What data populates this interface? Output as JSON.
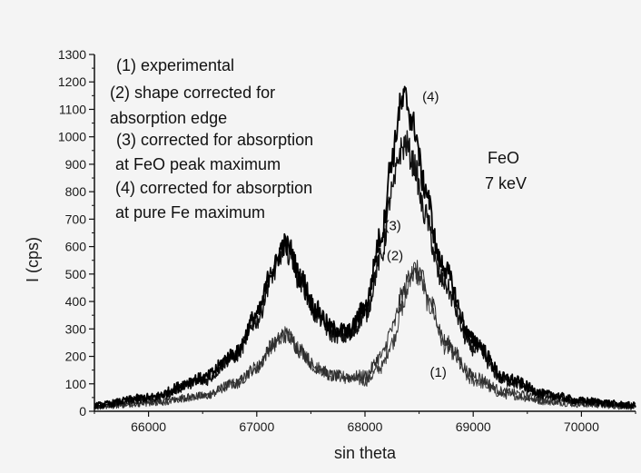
{
  "chart_data": {
    "type": "line",
    "title": "",
    "xlabel": "sin theta",
    "ylabel": "I (cps)",
    "xlim": [
      65500,
      70500
    ],
    "ylim": [
      0,
      1300
    ],
    "xticks": [
      66000,
      67000,
      68000,
      69000,
      70000
    ],
    "yticks": [
      0,
      100,
      200,
      300,
      400,
      500,
      600,
      700,
      800,
      900,
      1000,
      1100,
      1200,
      1300
    ],
    "grid": false,
    "legend_position": "top-left",
    "legend": [
      "(1) experimental",
      "(2) shape corrected for",
      "absorption edge",
      "(3) corrected for absorption",
      "at FeO  peak maximum",
      "(4) corrected for absorption",
      "at pure Fe maximum"
    ],
    "side_annotation": [
      "FeO",
      "7 keV"
    ],
    "series": [
      {
        "label": "(1)",
        "color": "#3a3a3a",
        "x": [
          65500,
          66000,
          66500,
          66800,
          67000,
          67150,
          67250,
          67300,
          67400,
          67550,
          67700,
          67850,
          68000,
          68150,
          68250,
          68350,
          68430,
          68500,
          68600,
          68750,
          69000,
          69300,
          69700,
          70000,
          70500
        ],
        "y": [
          15,
          30,
          55,
          100,
          160,
          240,
          280,
          270,
          220,
          160,
          130,
          120,
          110,
          160,
          250,
          380,
          500,
          490,
          380,
          230,
          110,
          60,
          35,
          25,
          15
        ]
      },
      {
        "label": "(2)",
        "color": "#2e2e2e",
        "x": [
          65500,
          66000,
          66500,
          66800,
          67000,
          67150,
          67250,
          67300,
          67400,
          67550,
          67700,
          67850,
          68000,
          68150,
          68250,
          68350,
          68430,
          68500,
          68600,
          68750,
          69000,
          69300,
          69700,
          70000,
          70500
        ],
        "y": [
          15,
          30,
          55,
          100,
          160,
          240,
          280,
          270,
          220,
          160,
          130,
          125,
          130,
          200,
          300,
          430,
          520,
          510,
          400,
          250,
          130,
          70,
          40,
          28,
          18
        ]
      },
      {
        "label": "(3)",
        "color": "#111111",
        "x": [
          65500,
          66000,
          66500,
          66800,
          67000,
          67150,
          67250,
          67300,
          67400,
          67550,
          67700,
          67850,
          68000,
          68150,
          68250,
          68330,
          68380,
          68450,
          68550,
          68700,
          69000,
          69300,
          69700,
          70000,
          70500
        ],
        "y": [
          20,
          45,
          110,
          200,
          330,
          500,
          590,
          575,
          470,
          350,
          280,
          270,
          350,
          560,
          800,
          950,
          975,
          900,
          720,
          480,
          230,
          110,
          55,
          35,
          20
        ]
      },
      {
        "label": "(4)",
        "color": "#000000",
        "x": [
          65500,
          66000,
          66500,
          66800,
          67000,
          67150,
          67250,
          67300,
          67400,
          67550,
          67700,
          67850,
          68000,
          68150,
          68250,
          68330,
          68370,
          68450,
          68550,
          68700,
          69000,
          69300,
          69700,
          70000,
          70500
        ],
        "y": [
          22,
          50,
          120,
          210,
          350,
          520,
          610,
          595,
          490,
          370,
          300,
          290,
          380,
          640,
          920,
          1110,
          1140,
          1040,
          820,
          540,
          260,
          120,
          60,
          38,
          22
        ]
      }
    ],
    "curve_labels": [
      {
        "text": "(1)",
        "x": 68600,
        "y": 125
      },
      {
        "text": "(2)",
        "x": 68200,
        "y": 550
      },
      {
        "text": "(3)",
        "x": 68180,
        "y": 660
      },
      {
        "text": "(4)",
        "x": 68530,
        "y": 1130
      }
    ]
  }
}
